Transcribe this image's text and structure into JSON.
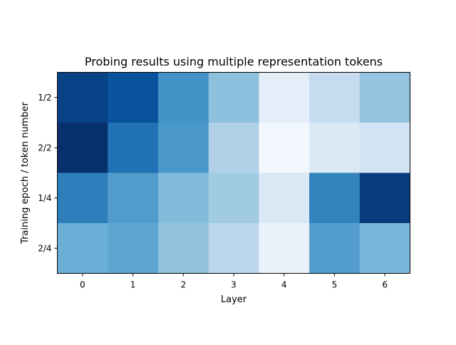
{
  "chart_data": {
    "type": "heatmap",
    "title": "Probing results using multiple representation tokens",
    "xlabel": "Layer",
    "ylabel": "Training epoch / token number",
    "x_categories": [
      "0",
      "1",
      "2",
      "3",
      "4",
      "5",
      "6"
    ],
    "y_categories": [
      "1/2",
      "2/2",
      "1/4",
      "2/4"
    ],
    "colormap": "Blues",
    "value_scale": [
      0,
      1
    ],
    "values": [
      [
        0.93,
        0.87,
        0.62,
        0.42,
        0.1,
        0.25,
        0.4
      ],
      [
        1.0,
        0.75,
        0.6,
        0.32,
        0.03,
        0.14,
        0.19
      ],
      [
        0.7,
        0.58,
        0.44,
        0.37,
        0.15,
        0.68,
        0.96
      ],
      [
        0.5,
        0.54,
        0.41,
        0.28,
        0.07,
        0.57,
        0.46
      ]
    ],
    "colors": {
      "frame": "#000000",
      "text": "#000000",
      "background": "#ffffff"
    }
  }
}
